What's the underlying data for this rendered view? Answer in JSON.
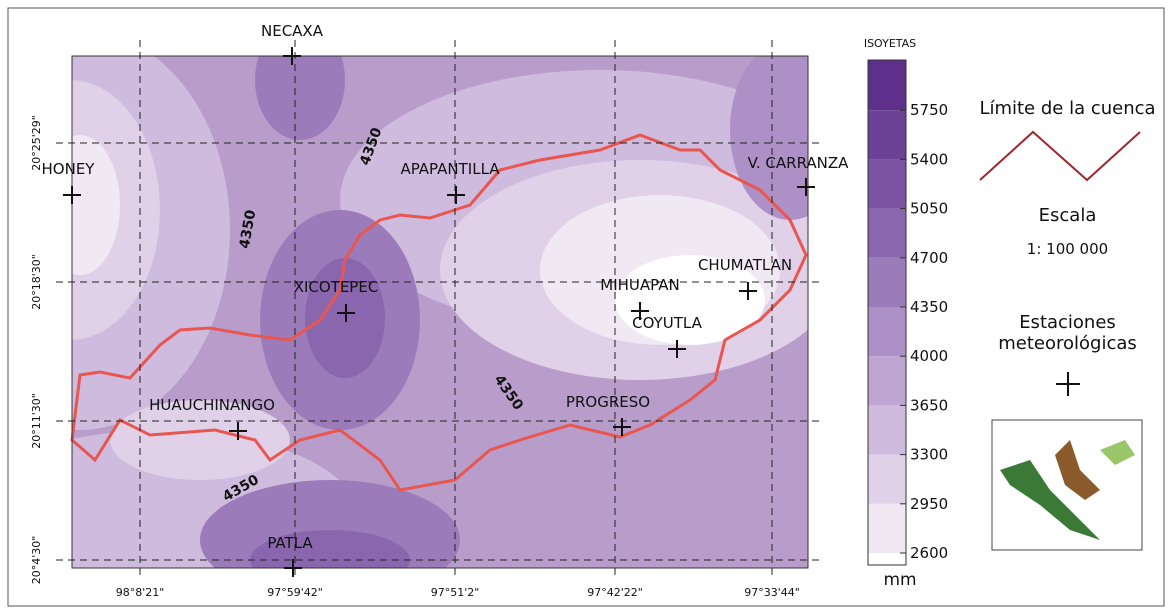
{
  "map": {
    "stations": [
      "NECAXA",
      "HONEY",
      "APAPANTILLA",
      "V. CARRANZA",
      "XICOTEPEC",
      "MIHUAPAN",
      "CHUMATLAN",
      "COYUTLA",
      "HUAUCHINANGO",
      "PROGRESO",
      "PATLA"
    ],
    "contour_labels": [
      "4350",
      "4350",
      "4350",
      "4350"
    ],
    "x_labels": [
      "98°8'21\"",
      "97°59'42\"",
      "97°51'2\"",
      "97°42'22\"",
      "97°33'44\""
    ],
    "y_labels": [
      "20°25'29\"",
      "20°18'30\"",
      "20°11'30\"",
      "20°4'30\""
    ]
  },
  "legend": {
    "title": "ISOYETAS",
    "ticks": [
      5750,
      5400,
      5050,
      4700,
      4350,
      4000,
      3650,
      3300,
      2950,
      2600
    ],
    "unit": "mm"
  },
  "side": {
    "boundary_label": "Límite de la cuenca",
    "scale_title": "Escala",
    "scale": "1: 100 000",
    "stations_label": "Estaciones meteorológicas"
  }
}
